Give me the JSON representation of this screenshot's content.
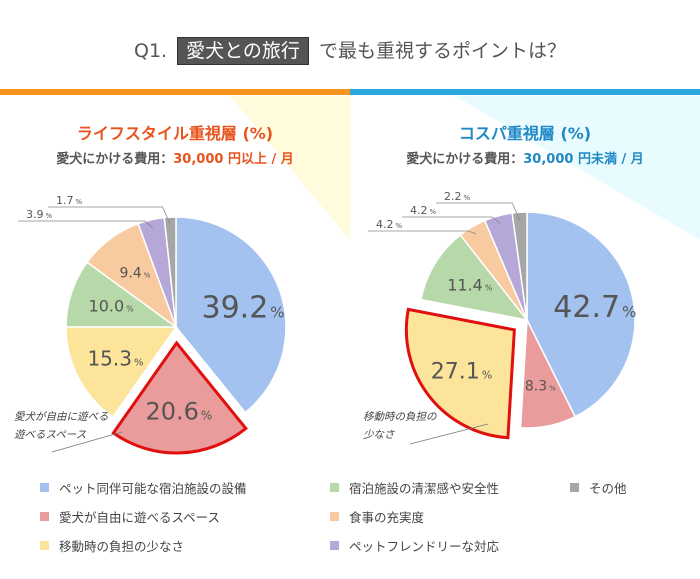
{
  "title": {
    "prefix": "Q1.",
    "highlight": "愛犬との旅行",
    "suffix": "で最も重視するポイントは？"
  },
  "colors": {
    "orange_bar": "#f7941d",
    "blue_bar": "#29a8e0",
    "left_bg": "#fffbdc",
    "right_bg": "#e8fcff"
  },
  "chart_data": [
    {
      "type": "pie",
      "title": "ライフスタイル重視層 (%)",
      "subtitle_label": "愛犬にかける費用：",
      "subtitle_value": "30,000 円以上 / 月",
      "categories": [
        "ペット同伴可能な宿泊施設の設備",
        "愛犬が自由に遊べるスペース",
        "移動時の負担の少なさ",
        "宿泊施設の清潔感や安全性",
        "食事の充実度",
        "ペットフレンドリーな対応",
        "その他"
      ],
      "values": [
        39.2,
        20.6,
        15.3,
        10.0,
        9.4,
        3.9,
        1.7
      ],
      "labels": [
        "39.2",
        "20.6",
        "15.3",
        "10.0",
        "9.4",
        "3.9",
        "1.7"
      ],
      "exploded": 1,
      "callout": "愛犬が自由に遊べる\n遊べるスペース",
      "callout_lines": [
        "愛犬が自由に遊べる",
        "遊べるスペース"
      ]
    },
    {
      "type": "pie",
      "title": "コスパ重視層 (%)",
      "subtitle_label": "愛犬にかける費用：",
      "subtitle_value": "30,000 円未満 / 月",
      "categories": [
        "ペット同伴可能な宿泊施設の設備",
        "愛犬が自由に遊べるスペース",
        "移動時の負担の少なさ",
        "宿泊施設の清潔感や安全性",
        "食事の充実度",
        "ペットフレンドリーな対応",
        "その他"
      ],
      "values": [
        42.7,
        8.3,
        27.1,
        11.4,
        4.2,
        4.2,
        2.2
      ],
      "labels": [
        "42.7",
        "8.3",
        "27.1",
        "11.4",
        "4.2",
        "4.2",
        "2.2"
      ],
      "exploded": 2,
      "callout_lines": [
        "移動時の負担の",
        "少なさ"
      ]
    }
  ],
  "unit": "%",
  "series_colors": [
    "#a4c2f0",
    "#ea9b9b",
    "#fde49b",
    "#b7d8a8",
    "#f8caa0",
    "#b5a7d8",
    "#a6a6a6"
  ],
  "highlight_color": "#e01010",
  "legend": [
    {
      "label": "ペット同伴可能な宿泊施設の設備",
      "color": "#a4c2f0"
    },
    {
      "label": "宿泊施設の清潔感や安全性",
      "color": "#b7d8a8"
    },
    {
      "label": "その他",
      "color": "#a6a6a6"
    },
    {
      "label": "愛犬が自由に遊べるスペース",
      "color": "#ea9b9b"
    },
    {
      "label": "食事の充実度",
      "color": "#f8caa0"
    },
    {
      "label": "",
      "color": ""
    },
    {
      "label": "移動時の負担の少なさ",
      "color": "#fde49b"
    },
    {
      "label": "ペットフレンドリーな対応",
      "color": "#b5a7d8"
    }
  ]
}
